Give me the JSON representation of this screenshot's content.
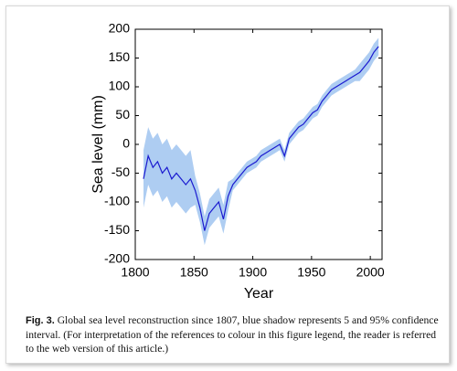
{
  "chart_data": {
    "type": "line",
    "xlabel": "Year",
    "ylabel": "Sea level (mm)",
    "xlim": [
      1800,
      2010
    ],
    "xticks": [
      1800,
      1850,
      1900,
      1950,
      2000
    ],
    "ylim": [
      -200,
      200
    ],
    "yticks": [
      -200,
      -150,
      -100,
      -50,
      0,
      50,
      100,
      150,
      200
    ],
    "x": [
      1807,
      1811,
      1815,
      1819,
      1823,
      1827,
      1831,
      1835,
      1839,
      1843,
      1847,
      1851,
      1855,
      1859,
      1863,
      1867,
      1871,
      1875,
      1879,
      1883,
      1887,
      1891,
      1895,
      1899,
      1903,
      1907,
      1911,
      1915,
      1919,
      1923,
      1927,
      1931,
      1935,
      1939,
      1943,
      1947,
      1951,
      1955,
      1959,
      1963,
      1967,
      1971,
      1975,
      1979,
      1983,
      1987,
      1991,
      1995,
      1999,
      2003,
      2007
    ],
    "line": {
      "color": "#1a1ad0",
      "values": [
        -60,
        -20,
        -40,
        -30,
        -50,
        -40,
        -60,
        -50,
        -60,
        -70,
        -60,
        -80,
        -110,
        -150,
        -120,
        -110,
        -100,
        -130,
        -90,
        -70,
        -60,
        -50,
        -40,
        -35,
        -30,
        -20,
        -15,
        -10,
        -5,
        0,
        -20,
        10,
        20,
        30,
        35,
        45,
        55,
        60,
        75,
        85,
        95,
        100,
        105,
        110,
        115,
        120,
        125,
        135,
        145,
        160,
        170
      ]
    },
    "band": {
      "color": "#aecdf2",
      "lower": [
        -110,
        -70,
        -90,
        -80,
        -100,
        -90,
        -110,
        -100,
        -110,
        -120,
        -110,
        -105,
        -135,
        -175,
        -145,
        -135,
        -125,
        -155,
        -115,
        -80,
        -70,
        -60,
        -50,
        -45,
        -40,
        -30,
        -25,
        -20,
        -15,
        -10,
        -30,
        0,
        10,
        20,
        25,
        35,
        45,
        50,
        65,
        75,
        85,
        90,
        95,
        100,
        105,
        110,
        110,
        120,
        130,
        145,
        155
      ],
      "upper": [
        -10,
        30,
        10,
        20,
        0,
        10,
        -10,
        0,
        -10,
        -20,
        -10,
        -55,
        -85,
        -125,
        -95,
        -85,
        -75,
        -105,
        -65,
        -60,
        -50,
        -40,
        -30,
        -25,
        -20,
        -10,
        -5,
        0,
        5,
        10,
        -10,
        20,
        30,
        40,
        45,
        55,
        65,
        70,
        85,
        95,
        105,
        110,
        115,
        120,
        125,
        130,
        140,
        150,
        160,
        175,
        185
      ]
    }
  },
  "caption": {
    "label": "Fig. 3.",
    "text": "Global sea level reconstruction since 1807, blue shadow represents 5 and 95% confidence interval. (For interpretation of the references to colour in this figure legend, the reader is referred to the web version of this article.)"
  }
}
